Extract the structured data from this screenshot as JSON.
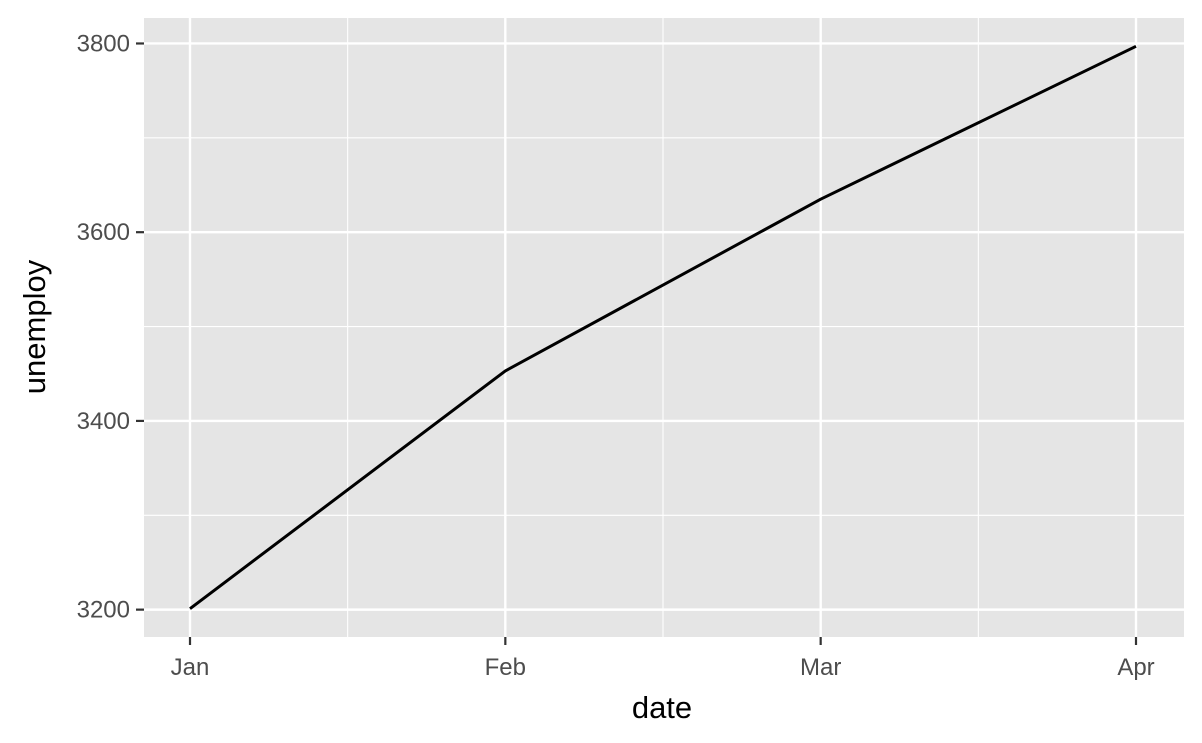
{
  "chart_data": {
    "type": "line",
    "title": "",
    "xlabel": "date",
    "ylabel": "unemploy",
    "x": [
      "Jan",
      "Feb",
      "Mar",
      "Apr"
    ],
    "series": [
      {
        "values": [
          3201,
          3453,
          3635,
          3797
        ]
      }
    ],
    "x_ticks": [
      "Jan",
      "Feb",
      "Mar",
      "Apr"
    ],
    "y_ticks": [
      3200,
      3400,
      3600,
      3800
    ],
    "ylim": [
      3171,
      3827
    ],
    "grid": true,
    "legend": "none",
    "colors": {
      "panel": "#e5e5e5",
      "grid": "#ffffff",
      "line": "#000000",
      "tick_text": "#4d4d4d",
      "tick_mark": "#333333"
    }
  }
}
